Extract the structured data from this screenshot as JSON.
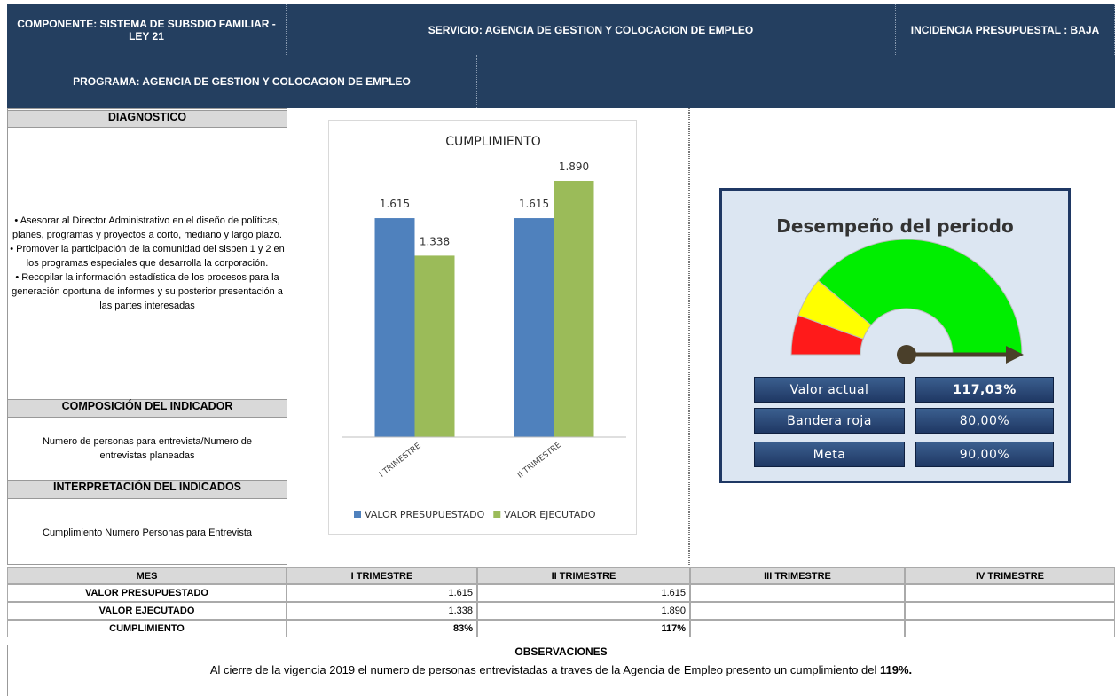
{
  "header": {
    "componente": "COMPONENTE: SISTEMA DE SUBSDIO FAMILIAR - LEY 21",
    "servicio": "SERVICIO: AGENCIA DE GESTION Y COLOCACION DE EMPLEO",
    "incidencia": "INCIDENCIA PRESUPUESTAL : BAJA",
    "programa": "PROGRAMA: AGENCIA DE GESTION Y COLOCACION DE EMPLEO"
  },
  "diagnostico": {
    "title": "DIAGNOSTICO",
    "items": [
      "• Asesorar al Director Administrativo en el diseño de políticas, planes, programas y proyectos a corto, mediano y largo plazo.",
      "• Promover la participación de la comunidad del sisben 1 y 2 en los programas especiales que desarrolla la corporación.",
      "• Recopilar la información estadística de los procesos para la generación  oportuna de informes y su posterior presentación a las partes interesadas"
    ]
  },
  "composicion": {
    "title": "COMPOSICIÓN DEL INDICADOR",
    "text": "Numero de personas para entrevista/Numero  de entrevistas planeadas"
  },
  "interpretacion": {
    "title": "INTERPRETACIÓN DEL INDICADOS",
    "text": "Cumplimiento Numero Personas para Entrevista"
  },
  "chart_data": {
    "type": "bar",
    "title": "CUMPLIMIENTO",
    "categories": [
      "I TRIMESTRE",
      "II TRIMESTRE"
    ],
    "series": [
      {
        "name": "VALOR PRESUPUESTADO",
        "color": "#4f81bd",
        "values": [
          1615,
          1615
        ],
        "value_labels": [
          "1.615",
          "1.615"
        ]
      },
      {
        "name": "VALOR EJECUTADO",
        "color": "#9bbb59",
        "values": [
          1338,
          1890
        ],
        "value_labels": [
          "1.338",
          "1.890"
        ]
      }
    ],
    "legend": "bottom"
  },
  "gauge": {
    "title": "Desempeño del periodo",
    "rows": [
      {
        "label": "Valor actual",
        "value": "117,03%"
      },
      {
        "label": "Bandera roja",
        "value": "80,00%"
      },
      {
        "label": "Meta",
        "value": "90,00%"
      }
    ]
  },
  "table": {
    "header": [
      "MES",
      "I TRIMESTRE",
      "II TRIMESTRE",
      "III TRIMESTRE",
      "IV TRIMESTRE"
    ],
    "rows": [
      [
        "VALOR PRESUPUESTADO",
        "1.615",
        "1.615"
      ],
      [
        "VALOR EJECUTADO",
        "1.338",
        "1.890"
      ],
      [
        "CUMPLIMIENTO",
        "83%",
        "117%"
      ]
    ]
  },
  "observaciones": {
    "title": "OBSERVACIONES",
    "text": "Al cierre de la vigencia 2019 el numero de personas entrevistadas a traves de la Agencia de Empleo presento un cumplimiento del ",
    "highlight": "119%."
  }
}
